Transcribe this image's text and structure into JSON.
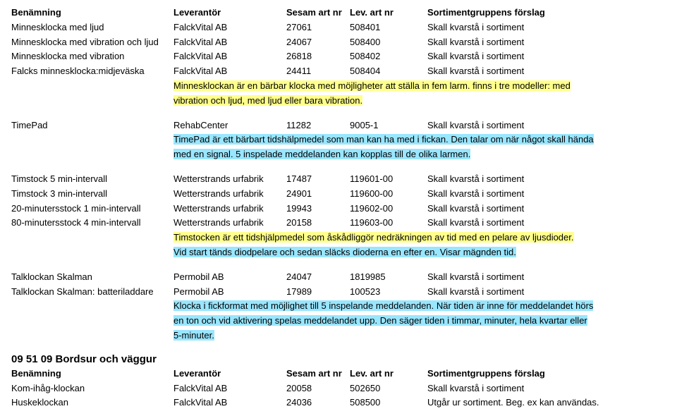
{
  "headers": {
    "c1": "Benämning",
    "c2": "Leverantör",
    "c3": "Sesam art nr",
    "c4": "Lev. art nr",
    "c5": "Sortimentgruppens förslag"
  },
  "group1": {
    "rows": [
      {
        "c1": "Minnesklocka med ljud",
        "c2": "FalckVital AB",
        "c3": "27061",
        "c4": "508401",
        "c5": "Skall kvarstå i sortiment"
      },
      {
        "c1": "Minnesklocka med vibration och ljud",
        "c2": "FalckVital AB",
        "c3": "24067",
        "c4": "508400",
        "c5": "Skall kvarstå i sortiment"
      },
      {
        "c1": "Minnesklocka med vibration",
        "c2": "FalckVital AB",
        "c3": "26818",
        "c4": "508402",
        "c5": "Skall kvarstå i sortiment"
      },
      {
        "c1": "Falcks minnesklocka:midjeväska",
        "c2": "FalckVital AB",
        "c3": "24411",
        "c4": "508404",
        "c5": "Skall kvarstå i sortiment"
      }
    ],
    "desc": [
      "Minnesklockan är en bärbar klocka med möjligheter att ställa in fem larm. finns i tre modeller: med",
      "vibration och ljud, med ljud eller bara vibration."
    ]
  },
  "group2": {
    "rows": [
      {
        "c1": "TimePad",
        "c2": "RehabCenter",
        "c3": "11282",
        "c4": "9005-1",
        "c5": "Skall kvarstå i sortiment"
      }
    ],
    "desc": [
      "TimePad är ett bärbart tidshälpmedel som man kan ha med i fickan. Den talar om när något skall hända",
      "med en signal. 5 inspelade meddelanden kan kopplas till de olika larmen."
    ]
  },
  "group3": {
    "rows": [
      {
        "c1": "Timstock 5 min-intervall",
        "c2": "Wetterstrands urfabrik",
        "c3": "17487",
        "c4": "119601-00",
        "c5": "Skall kvarstå i sortiment"
      },
      {
        "c1": "Timstock 3 min-intervall",
        "c2": "Wetterstrands urfabrik",
        "c3": "24901",
        "c4": "119600-00",
        "c5": "Skall kvarstå i sortiment"
      },
      {
        "c1": "20-minutersstock 1 min-intervall",
        "c2": "Wetterstrands urfabrik",
        "c3": "19943",
        "c4": "119602-00",
        "c5": "Skall kvarstå i sortiment"
      },
      {
        "c1": "80-minutersstock 4 min-intervall",
        "c2": "Wetterstrands urfabrik",
        "c3": "20158",
        "c4": "119603-00",
        "c5": "Skall kvarstå i sortiment"
      }
    ],
    "desc": [
      "Timstocken är ett tidshjälpmedel som åskådliggör nedräkningen av tid med en pelare av ljusdioder.",
      "Vid start tänds diodpelare och sedan släcks dioderna en efter en. Visar mägnden tid."
    ]
  },
  "group4": {
    "rows": [
      {
        "c1": "Talklockan Skalman",
        "c2": "Permobil AB",
        "c3": "24047",
        "c4": "1819985",
        "c5": "Skall kvarstå i sortiment"
      },
      {
        "c1": "Talklockan Skalman: batteriladdare",
        "c2": "Permobil AB",
        "c3": "17989",
        "c4": "100523",
        "c5": "Skall kvarstå i sortiment"
      }
    ],
    "desc": [
      "Klocka i fickformat med möjlighet till 5 inspelande meddelanden. När tiden är inne för meddelandet hörs",
      "en ton och vid aktivering spelas meddelandet upp. Den säger tiden i timmar, minuter, hela kvartar eller",
      "5-minuter."
    ]
  },
  "section2": {
    "title": "09 51 09  Bordsur och väggur",
    "rows": [
      {
        "c1": "Kom-ihåg-klockan",
        "c2": "FalckVital AB",
        "c3": "20058",
        "c4": "502650",
        "c5": "Skall kvarstå i sortiment"
      },
      {
        "c1": "Huskeklockan",
        "c2": "FalckVital AB",
        "c3": "24036",
        "c4": "508500",
        "c5": "Utgår ur sortiment. Beg. ex kan användas."
      }
    ]
  },
  "colors": {
    "yellow": "#ffff8c",
    "blue": "#99e6ff"
  }
}
